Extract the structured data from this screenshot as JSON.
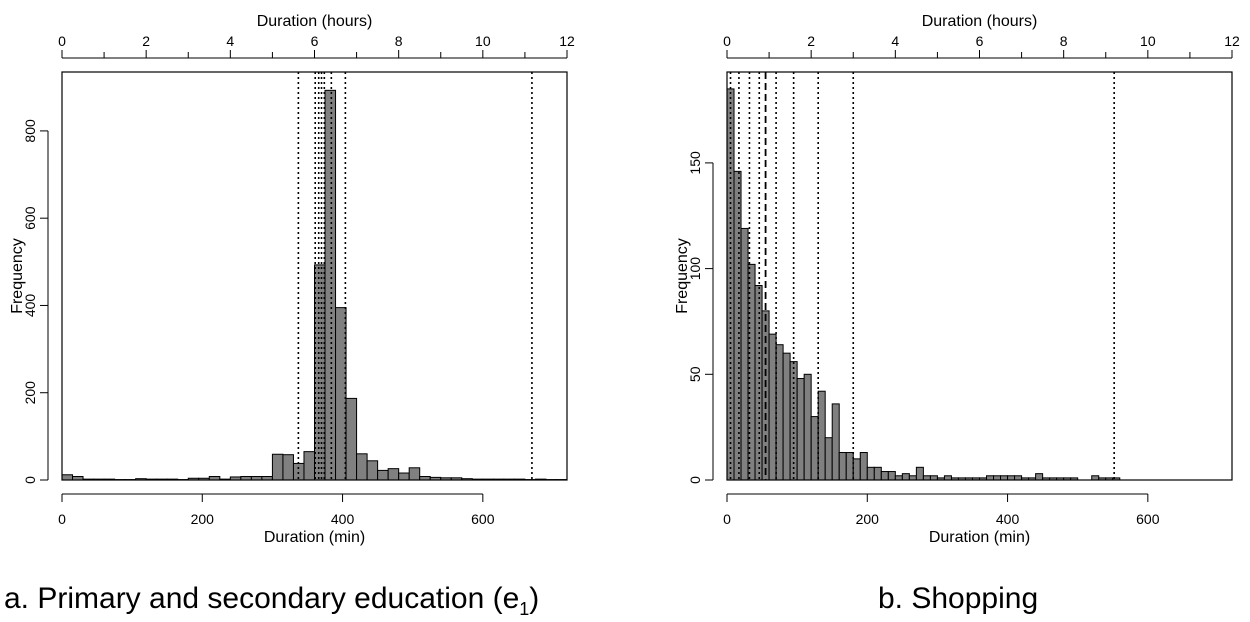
{
  "chart_data": [
    {
      "type": "bar",
      "caption": {
        "prefix": "a. Primary and secondary education (e",
        "subscript": "1",
        "suffix": ")"
      },
      "xlabel": "Duration (min)",
      "top_xlabel": "Duration (hours)",
      "ylabel": "Frequency",
      "xlim": [
        0,
        720
      ],
      "ylim": [
        0,
        935
      ],
      "x_ticks": [
        0,
        200,
        400,
        600
      ],
      "top_ticks": [
        0,
        2,
        4,
        6,
        8,
        10,
        12
      ],
      "y_ticks": [
        0,
        200,
        400,
        600,
        800
      ],
      "bin_width": 15,
      "counts": [
        12,
        8,
        2,
        2,
        2,
        1,
        1,
        3,
        2,
        2,
        2,
        1,
        4,
        4,
        8,
        2,
        7,
        8,
        8,
        8,
        59,
        58,
        38,
        65,
        493,
        893,
        395,
        187,
        60,
        44,
        22,
        26,
        16,
        28,
        8,
        6,
        5,
        5,
        3,
        2,
        2,
        2,
        2,
        2,
        1,
        2,
        1,
        1
      ],
      "dotted_lines": [
        337,
        361,
        366,
        370,
        374,
        384,
        404,
        670
      ],
      "dashed_lines": []
    },
    {
      "type": "bar",
      "caption": {
        "text": "b. Shopping"
      },
      "xlabel": "Duration (min)",
      "top_xlabel": "Duration (hours)",
      "ylabel": "Frequency",
      "xlim": [
        0,
        720
      ],
      "ylim": [
        0,
        193
      ],
      "x_ticks": [
        0,
        200,
        400,
        600
      ],
      "top_ticks": [
        0,
        2,
        4,
        6,
        8,
        10,
        12
      ],
      "y_ticks": [
        0,
        50,
        100,
        150
      ],
      "bin_width": 10,
      "counts": [
        185,
        146,
        119,
        102,
        92,
        80,
        69,
        64,
        60,
        56,
        48,
        50,
        30,
        42,
        20,
        36,
        13,
        13,
        10,
        13,
        6,
        6,
        4,
        4,
        2,
        3,
        2,
        6,
        2,
        2,
        1,
        2,
        1,
        1,
        1,
        1,
        1,
        2,
        2,
        2,
        2,
        2,
        1,
        1,
        3,
        1,
        1,
        1,
        1,
        1,
        0,
        0,
        2,
        1,
        1,
        1
      ],
      "dotted_lines": [
        5,
        17,
        32,
        46,
        70,
        95,
        130,
        180,
        552
      ],
      "dashed_lines": [
        55
      ]
    }
  ]
}
